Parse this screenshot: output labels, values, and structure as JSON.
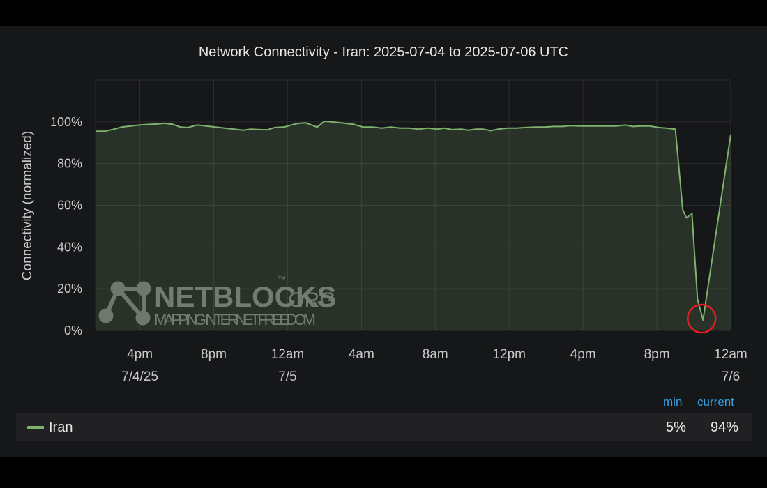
{
  "chart_data": {
    "type": "area",
    "title": "Network Connectivity - Iran: 2025-07-04 to 2025-07-06 UTC",
    "ylabel": "Connectivity (normalized)",
    "xlabel": "",
    "ylim": [
      0,
      100
    ],
    "y_ticks": [
      "0%",
      "20%",
      "40%",
      "60%",
      "80%",
      "100%"
    ],
    "y_tick_values": [
      0,
      20,
      40,
      60,
      80,
      100
    ],
    "x_ticks": [
      {
        "hour": 16,
        "label": "4pm",
        "date": "7/4/25"
      },
      {
        "hour": 20,
        "label": "8pm",
        "date": ""
      },
      {
        "hour": 24,
        "label": "12am",
        "date": "7/5"
      },
      {
        "hour": 28,
        "label": "4am",
        "date": ""
      },
      {
        "hour": 32,
        "label": "8am",
        "date": ""
      },
      {
        "hour": 36,
        "label": "12pm",
        "date": ""
      },
      {
        "hour": 40,
        "label": "4pm",
        "date": ""
      },
      {
        "hour": 44,
        "label": "8pm",
        "date": ""
      },
      {
        "hour": 48,
        "label": "12am",
        "date": "7/6"
      }
    ],
    "x_range": [
      13.6,
      48
    ],
    "grid": true,
    "series": [
      {
        "name": "Iran",
        "color": "#7eb26d",
        "points": [
          [
            13.6,
            95.5
          ],
          [
            14.1,
            95.5
          ],
          [
            14.6,
            96.5
          ],
          [
            15.0,
            97.5
          ],
          [
            15.5,
            98
          ],
          [
            16.0,
            98.5
          ],
          [
            16.5,
            98.8
          ],
          [
            17.0,
            99
          ],
          [
            17.3,
            99.3
          ],
          [
            17.8,
            98.8
          ],
          [
            18.2,
            97.5
          ],
          [
            18.6,
            97.3
          ],
          [
            19.1,
            98.5
          ],
          [
            19.6,
            98
          ],
          [
            20.1,
            97.5
          ],
          [
            20.6,
            97
          ],
          [
            21.1,
            96.5
          ],
          [
            21.6,
            96
          ],
          [
            22.0,
            96.5
          ],
          [
            22.5,
            96.3
          ],
          [
            22.9,
            96.2
          ],
          [
            23.3,
            97.3
          ],
          [
            23.8,
            97.5
          ],
          [
            24.2,
            98.5
          ],
          [
            24.6,
            99.3
          ],
          [
            25.0,
            99.5
          ],
          [
            25.6,
            97.5
          ],
          [
            26.0,
            100.3
          ],
          [
            26.6,
            99.8
          ],
          [
            27.1,
            99.3
          ],
          [
            27.6,
            98.8
          ],
          [
            28.1,
            97.5
          ],
          [
            28.6,
            97.5
          ],
          [
            29.1,
            97
          ],
          [
            29.6,
            97.5
          ],
          [
            30.1,
            97
          ],
          [
            30.6,
            97
          ],
          [
            31.1,
            96.5
          ],
          [
            31.6,
            97
          ],
          [
            32.1,
            96.5
          ],
          [
            32.5,
            97
          ],
          [
            32.9,
            96.3
          ],
          [
            33.4,
            96.5
          ],
          [
            33.8,
            96
          ],
          [
            34.2,
            96.5
          ],
          [
            34.6,
            96.5
          ],
          [
            35.0,
            95.8
          ],
          [
            35.4,
            96.5
          ],
          [
            35.9,
            97
          ],
          [
            36.4,
            97
          ],
          [
            36.9,
            97.3
          ],
          [
            37.4,
            97.5
          ],
          [
            37.9,
            97.5
          ],
          [
            38.4,
            97.8
          ],
          [
            38.9,
            97.8
          ],
          [
            39.3,
            98.2
          ],
          [
            39.8,
            98
          ],
          [
            40.3,
            98
          ],
          [
            40.8,
            98
          ],
          [
            41.3,
            98
          ],
          [
            41.8,
            98
          ],
          [
            42.3,
            98.5
          ],
          [
            42.7,
            97.8
          ],
          [
            43.1,
            98
          ],
          [
            43.6,
            98
          ],
          [
            44.1,
            97.3
          ],
          [
            44.5,
            97
          ],
          [
            45.0,
            96.5
          ],
          [
            45.4,
            58
          ],
          [
            45.6,
            54
          ],
          [
            45.9,
            56
          ],
          [
            46.2,
            15
          ],
          [
            46.5,
            5
          ],
          [
            48.0,
            94
          ]
        ]
      }
    ],
    "annotation": {
      "type": "circle",
      "hour": 46.5,
      "value": 5,
      "color": "#e02020"
    }
  },
  "watermark": {
    "brand": "NETBLOCKS",
    "suffix": ".ORG",
    "tm": "™",
    "tagline": "MAPPING INTERNET FREEDOM"
  },
  "legend": {
    "headers": {
      "min": "min",
      "current": "current"
    },
    "rows": [
      {
        "name": "Iran",
        "color": "#7eb26d",
        "min": "5%",
        "current": "94%"
      }
    ]
  }
}
